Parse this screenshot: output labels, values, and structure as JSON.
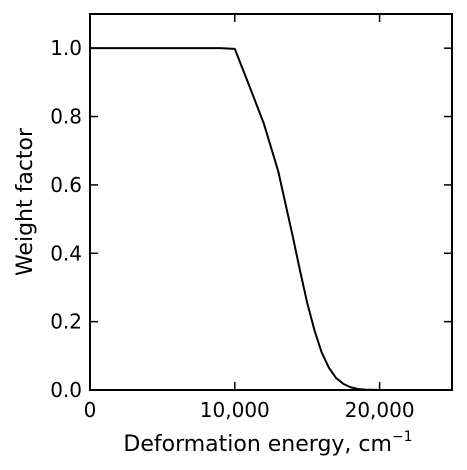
{
  "chart_data": {
    "type": "line",
    "title": "",
    "xlabel": "Deformation energy, cm",
    "xlabel_superscript": "−1",
    "ylabel": "Weight factor",
    "xlim": [
      0,
      25000
    ],
    "ylim": [
      0.0,
      1.1
    ],
    "xticks": [
      0,
      10000,
      20000
    ],
    "xtick_labels": [
      "0",
      "10,000",
      "20,000"
    ],
    "yticks": [
      0.0,
      0.2,
      0.4,
      0.6,
      0.8,
      1.0
    ],
    "ytick_labels": [
      "0.0",
      "0.2",
      "0.4",
      "0.6",
      "0.8",
      "1.0"
    ],
    "grid": false,
    "legend": "none",
    "line_color": "#000000",
    "series": [
      {
        "x": [
          0,
          9000,
          10000,
          11000,
          12000,
          13000,
          14000,
          14500,
          15000,
          15500,
          16000,
          16500,
          17000,
          17500,
          18000,
          18500,
          19000,
          20000,
          21000,
          22000,
          25000
        ],
        "y": [
          1.0,
          1.0,
          0.998,
          0.89,
          0.78,
          0.64,
          0.45,
          0.35,
          0.255,
          0.175,
          0.11,
          0.065,
          0.035,
          0.018,
          0.008,
          0.003,
          0.001,
          0.0,
          0.0,
          0.0,
          0.0
        ]
      }
    ]
  }
}
